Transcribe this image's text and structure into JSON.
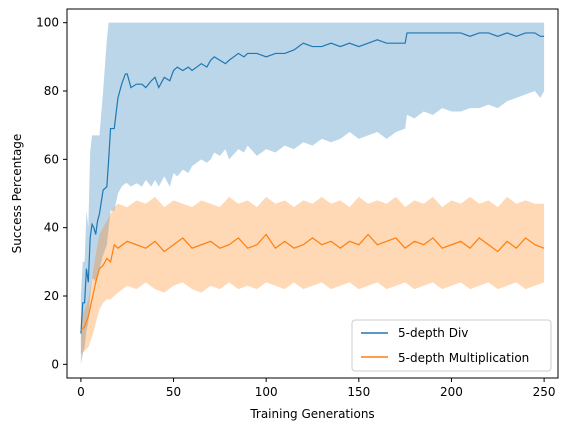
{
  "chart_data": {
    "type": "line",
    "xlabel": "Training Generations",
    "ylabel": "Success Percentage",
    "xlim": [
      -7.5,
      257.5
    ],
    "ylim": [
      -4,
      104
    ],
    "xticks": [
      0,
      50,
      100,
      150,
      200,
      250
    ],
    "yticks": [
      0,
      20,
      40,
      60,
      80,
      100
    ],
    "grid": false,
    "legend_position": "lower right",
    "series": [
      {
        "name": "5-depth Div",
        "color": "#1f77b4",
        "band_color": "#1f77b4",
        "x": [
          0,
          1,
          2,
          3,
          4,
          5,
          6,
          7,
          8,
          9,
          10,
          12,
          14,
          15,
          16,
          18,
          20,
          22,
          24,
          25,
          27,
          30,
          33,
          35,
          38,
          40,
          42,
          45,
          48,
          50,
          52,
          55,
          58,
          60,
          65,
          68,
          70,
          72,
          75,
          78,
          80,
          85,
          88,
          90,
          95,
          100,
          105,
          110,
          115,
          120,
          125,
          130,
          135,
          140,
          145,
          150,
          155,
          160,
          165,
          170,
          175,
          176,
          180,
          185,
          190,
          195,
          200,
          205,
          210,
          215,
          220,
          225,
          230,
          235,
          240,
          245,
          248,
          250
        ],
        "y": [
          9,
          18,
          18,
          28,
          24,
          37,
          41,
          40,
          38,
          42,
          44,
          51,
          52,
          60,
          69,
          69,
          78,
          82,
          85,
          85,
          81,
          82,
          82,
          81,
          83,
          84,
          81,
          84,
          83,
          86,
          87,
          86,
          87,
          86,
          88,
          87,
          89,
          90,
          89,
          88,
          89,
          91,
          90,
          91,
          91,
          90,
          91,
          91,
          92,
          94,
          93,
          93,
          94,
          93,
          94,
          93,
          94,
          95,
          94,
          94,
          94,
          97,
          97,
          97,
          97,
          97,
          97,
          97,
          96,
          97,
          97,
          96,
          97,
          96,
          97,
          97,
          96,
          96
        ],
        "lower": [
          0,
          3,
          5,
          10,
          12,
          20,
          25,
          25,
          24,
          26,
          28,
          32,
          35,
          40,
          45,
          45,
          50,
          52,
          53,
          53,
          52,
          53,
          52,
          54,
          52,
          54,
          52,
          55,
          52,
          56,
          55,
          57,
          56,
          58,
          60,
          59,
          60,
          62,
          61,
          63,
          60,
          63,
          62,
          64,
          61,
          63,
          62,
          64,
          63,
          65,
          64,
          66,
          65,
          66,
          68,
          66,
          67,
          68,
          66,
          68,
          69,
          73,
          72,
          74,
          73,
          75,
          74,
          74,
          75,
          75,
          76,
          75,
          77,
          78,
          79,
          80,
          78,
          80
        ],
        "upper": [
          20,
          30,
          30,
          45,
          40,
          62,
          67,
          67,
          67,
          67,
          67,
          80,
          95,
          100,
          100,
          100,
          100,
          100,
          100,
          100,
          100,
          100,
          100,
          100,
          100,
          100,
          100,
          100,
          100,
          100,
          100,
          100,
          100,
          100,
          100,
          100,
          100,
          100,
          100,
          100,
          100,
          100,
          100,
          100,
          100,
          100,
          100,
          100,
          100,
          100,
          100,
          100,
          100,
          100,
          100,
          100,
          100,
          100,
          100,
          100,
          100,
          100,
          100,
          100,
          100,
          100,
          100,
          100,
          100,
          100,
          100,
          100,
          100,
          100,
          100,
          100,
          100,
          100
        ]
      },
      {
        "name": "5-depth Multiplication",
        "color": "#ff7f0e",
        "band_color": "#ff7f0e",
        "x": [
          0,
          2,
          4,
          6,
          8,
          10,
          12,
          14,
          16,
          18,
          20,
          25,
          30,
          35,
          40,
          45,
          50,
          55,
          60,
          65,
          70,
          75,
          80,
          85,
          90,
          95,
          100,
          105,
          110,
          115,
          120,
          125,
          130,
          135,
          140,
          145,
          150,
          155,
          160,
          165,
          170,
          175,
          180,
          185,
          190,
          195,
          200,
          205,
          210,
          215,
          220,
          225,
          230,
          235,
          240,
          245,
          250
        ],
        "y": [
          10,
          11,
          14,
          19,
          24,
          28,
          29,
          31,
          30,
          35,
          34,
          36,
          35,
          34,
          36,
          33,
          35,
          37,
          34,
          35,
          36,
          34,
          35,
          37,
          34,
          35,
          38,
          34,
          36,
          34,
          35,
          37,
          35,
          36,
          34,
          36,
          35,
          38,
          35,
          36,
          37,
          34,
          36,
          35,
          37,
          34,
          35,
          36,
          34,
          37,
          35,
          33,
          36,
          34,
          37,
          35,
          34
        ],
        "lower": [
          3,
          4,
          5,
          8,
          12,
          16,
          18,
          19,
          19,
          20,
          21,
          23,
          22,
          24,
          22,
          21,
          23,
          24,
          22,
          21,
          23,
          22,
          24,
          22,
          23,
          22,
          24,
          23,
          22,
          24,
          22,
          23,
          24,
          22,
          23,
          24,
          22,
          23,
          24,
          22,
          23,
          24,
          22,
          23,
          24,
          22,
          23,
          24,
          22,
          23,
          24,
          22,
          23,
          24,
          22,
          23,
          24
        ],
        "upper": [
          14,
          16,
          19,
          25,
          32,
          38,
          40,
          42,
          44,
          46,
          47,
          46,
          48,
          47,
          49,
          46,
          48,
          47,
          46,
          48,
          47,
          46,
          49,
          47,
          48,
          46,
          49,
          47,
          48,
          46,
          48,
          47,
          49,
          47,
          48,
          46,
          49,
          47,
          48,
          47,
          49,
          46,
          48,
          47,
          49,
          46,
          48,
          47,
          49,
          47,
          48,
          46,
          49,
          47,
          48,
          47,
          47
        ]
      }
    ]
  }
}
